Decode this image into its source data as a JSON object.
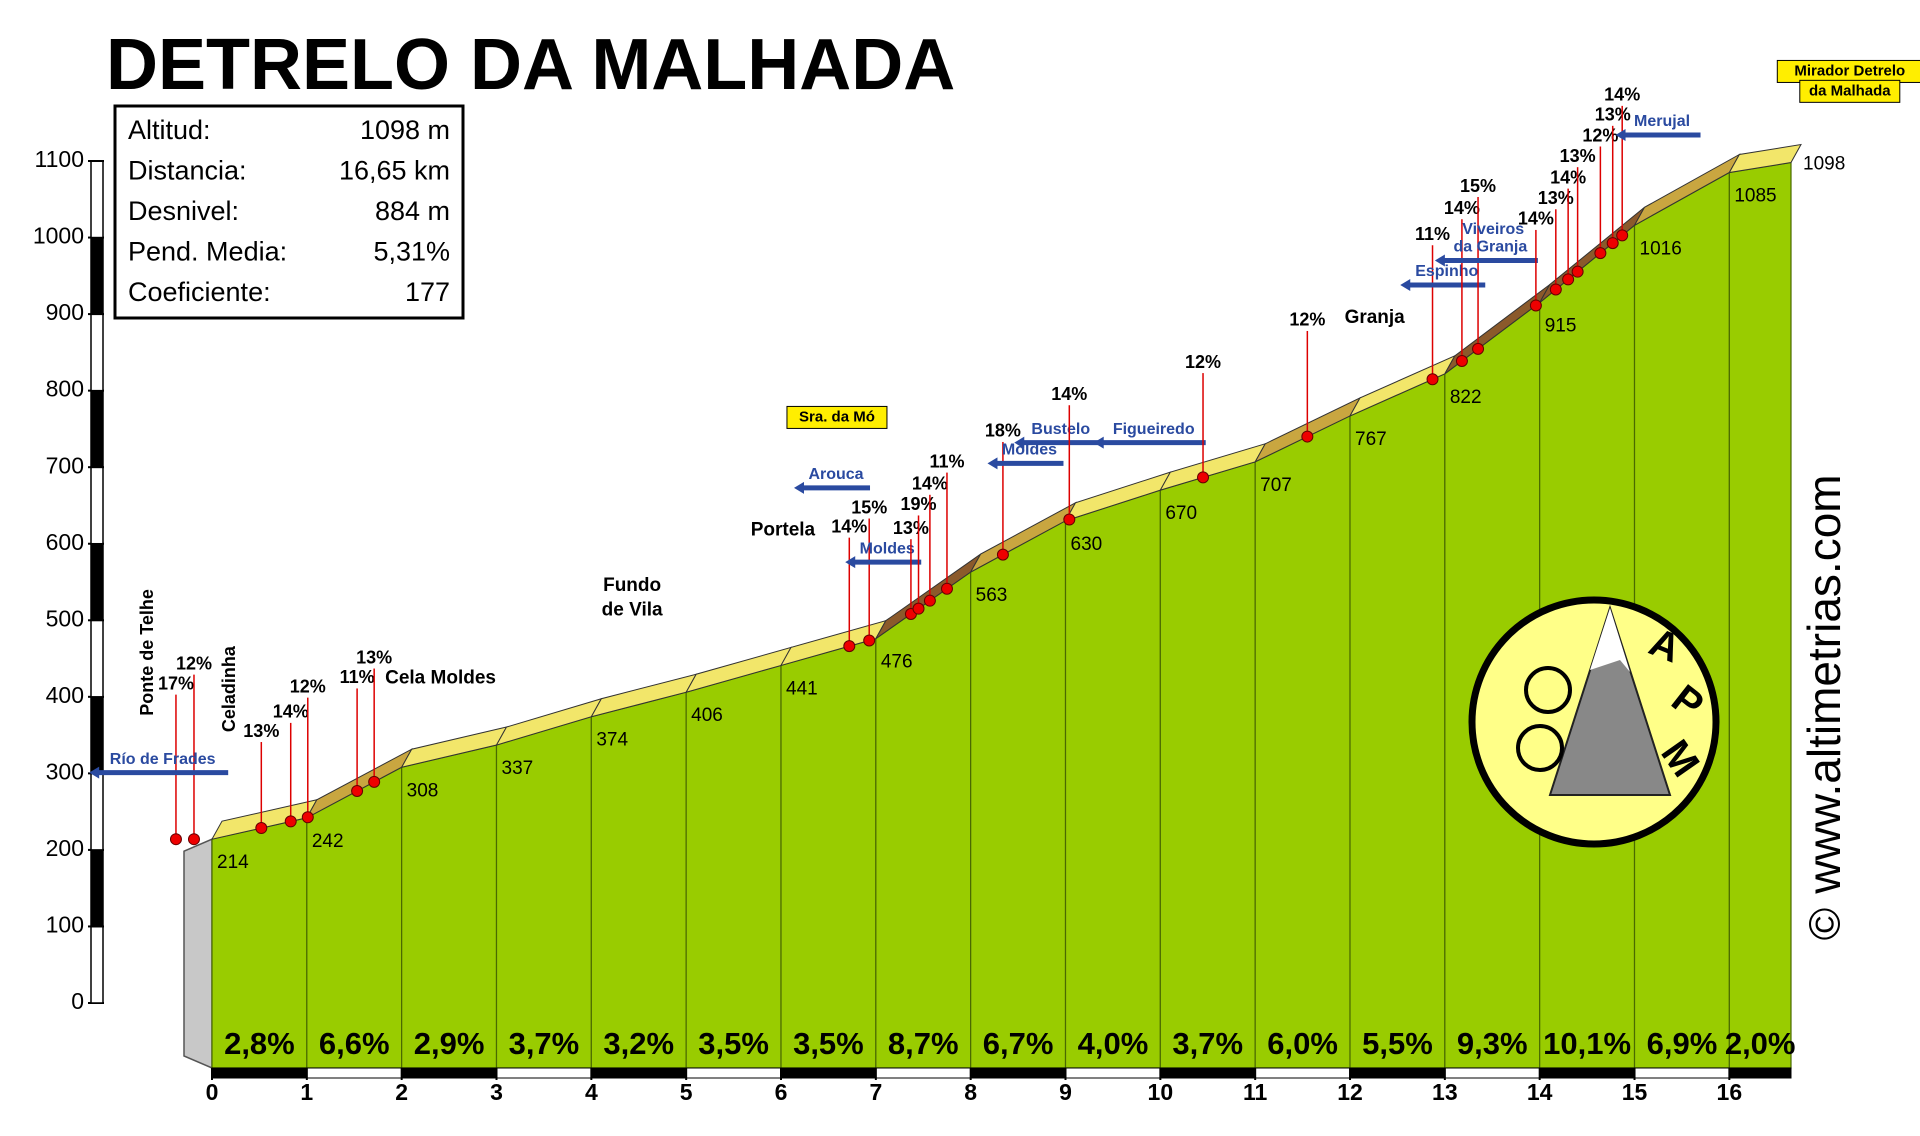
{
  "chart_data": {
    "type": "elevation-profile",
    "title": "DETRELO DA MALHADA",
    "stats": {
      "rows": [
        [
          "Altitud:",
          "1098 m"
        ],
        [
          "Distancia:",
          "16,65 km"
        ],
        [
          "Desnivel:",
          "884 m"
        ],
        [
          "Pend. Media:",
          "5,31%"
        ],
        [
          "Coeficiente:",
          "177"
        ]
      ]
    },
    "x": [
      0,
      1,
      2,
      3,
      4,
      5,
      6,
      7,
      8,
      9,
      10,
      11,
      12,
      13,
      14,
      15,
      16,
      16.65
    ],
    "values": [
      214,
      242,
      308,
      337,
      374,
      406,
      441,
      476,
      563,
      630,
      670,
      707,
      767,
      822,
      915,
      1016,
      1085,
      1098
    ],
    "color": "#99cc00",
    "segments": {
      "values": [
        2.8,
        6.6,
        2.9,
        3.7,
        3.2,
        3.5,
        3.5,
        8.7,
        6.7,
        4.0,
        3.7,
        6.0,
        5.5,
        9.3,
        10.1,
        6.9,
        2.0
      ],
      "value_labels": [
        "2,8%",
        "6,6%",
        "2,9%",
        "3,7%",
        "3,2%",
        "3,5%",
        "3,5%",
        "8,7%",
        "6,7%",
        "4,0%",
        "3,7%",
        "6,0%",
        "5,5%",
        "9,3%",
        "10,1%",
        "6,9%",
        "2,0%"
      ]
    },
    "xlim": [
      0,
      16.65
    ],
    "xticks": [
      0,
      1,
      2,
      3,
      4,
      5,
      6,
      7,
      8,
      9,
      10,
      11,
      12,
      13,
      14,
      15,
      16
    ],
    "ylim": [
      0,
      1100
    ],
    "yticks": [
      0,
      100,
      200,
      300,
      400,
      500,
      600,
      700,
      800,
      900,
      1000,
      1100
    ],
    "annotations": [
      {
        "text": "Ponte de Telhe",
        "kind": "vplace",
        "x": -0.67,
        "y": 458
      },
      {
        "text": "17%",
        "kind": "pct",
        "x": -0.38,
        "y": 416
      },
      {
        "text": "12%",
        "kind": "pct",
        "x": -0.19,
        "y": 442
      },
      {
        "text": "Celadinha",
        "kind": "vplace",
        "x": 0.19,
        "y": 410
      },
      {
        "text": "13%",
        "kind": "pct",
        "x": 0.52,
        "y": 354
      },
      {
        "text": "14%",
        "kind": "pct",
        "x": 0.83,
        "y": 379
      },
      {
        "text": "12%",
        "kind": "pct",
        "x": 1.01,
        "y": 412
      },
      {
        "text": "Río de Frades",
        "kind": "sign",
        "x": -0.52,
        "y": 318
      },
      {
        "text": "11%",
        "kind": "pct",
        "x": 1.53,
        "y": 424
      },
      {
        "text": "13%",
        "kind": "pct",
        "x": 1.71,
        "y": 450
      },
      {
        "text": "Cela Moldes",
        "kind": "place",
        "x": 2.41,
        "y": 424
      },
      {
        "text": "Fundo",
        "kind": "place",
        "x": 4.43,
        "y": 545
      },
      {
        "text": "de Vila",
        "kind": "place",
        "x": 4.43,
        "y": 513
      },
      {
        "text": "Portela",
        "kind": "place",
        "x": 6.02,
        "y": 617
      },
      {
        "text": "Sra. da Mó",
        "kind": "box",
        "x": 6.59,
        "y": 765
      },
      {
        "text": "Arouca",
        "kind": "sign",
        "x": 6.58,
        "y": 690
      },
      {
        "text": "14%",
        "kind": "pct",
        "x": 6.72,
        "y": 621
      },
      {
        "text": "15%",
        "kind": "pct",
        "x": 6.93,
        "y": 646
      },
      {
        "text": "Moldes",
        "kind": "sign",
        "x": 7.12,
        "y": 593
      },
      {
        "text": "13%",
        "kind": "pct",
        "x": 7.37,
        "y": 619
      },
      {
        "text": "19%",
        "kind": "pct",
        "x": 7.45,
        "y": 650
      },
      {
        "text": "14%",
        "kind": "pct",
        "x": 7.57,
        "y": 677
      },
      {
        "text": "11%",
        "kind": "pct",
        "x": 7.75,
        "y": 706
      },
      {
        "text": "18%",
        "kind": "pct",
        "x": 8.34,
        "y": 746
      },
      {
        "text": "Moldes",
        "kind": "sign",
        "x": 8.62,
        "y": 722
      },
      {
        "text": "Bustelo",
        "kind": "sign",
        "x": 8.95,
        "y": 749
      },
      {
        "text": "14%",
        "kind": "pct",
        "x": 9.04,
        "y": 794
      },
      {
        "text": "Figueiredo",
        "kind": "sign",
        "x": 9.93,
        "y": 749
      },
      {
        "text": "12%",
        "kind": "pct",
        "x": 10.45,
        "y": 836
      },
      {
        "text": "12%",
        "kind": "pct",
        "x": 11.55,
        "y": 891
      },
      {
        "text": "Granja",
        "kind": "place",
        "x": 12.26,
        "y": 895
      },
      {
        "text": "11%",
        "kind": "pct",
        "x": 12.87,
        "y": 1003
      },
      {
        "text": "Espinho",
        "kind": "sign",
        "x": 13.02,
        "y": 955
      },
      {
        "text": "14%",
        "kind": "pct",
        "x": 13.18,
        "y": 1037
      },
      {
        "text": "15%",
        "kind": "pct",
        "x": 13.35,
        "y": 1066
      },
      {
        "text": "Viveiros",
        "kind": "place-blue",
        "x": 13.51,
        "y": 1010
      },
      {
        "text": "da Granja",
        "kind": "sign",
        "x": 13.48,
        "y": 987
      },
      {
        "text": "14%",
        "kind": "pct",
        "x": 13.96,
        "y": 1023
      },
      {
        "text": "13%",
        "kind": "pct",
        "x": 14.17,
        "y": 1050
      },
      {
        "text": "14%",
        "kind": "pct",
        "x": 14.3,
        "y": 1077
      },
      {
        "text": "13%",
        "kind": "pct",
        "x": 14.4,
        "y": 1105
      },
      {
        "text": "12%",
        "kind": "pct",
        "x": 14.64,
        "y": 1132
      },
      {
        "text": "13%",
        "kind": "pct",
        "x": 14.77,
        "y": 1159
      },
      {
        "text": "14%",
        "kind": "pct",
        "x": 14.87,
        "y": 1185
      },
      {
        "text": "Merujal",
        "kind": "sign",
        "x": 15.29,
        "y": 1151
      },
      {
        "text": "Mirador Detrelo",
        "kind": "box",
        "x": 17.27,
        "y": 1217
      },
      {
        "text": "da Malhada",
        "kind": "box",
        "x": 17.27,
        "y": 1191
      }
    ],
    "logo": [
      "A",
      "P",
      "M"
    ],
    "watermark": "www.altimetrias.com",
    "copyright": "©"
  }
}
